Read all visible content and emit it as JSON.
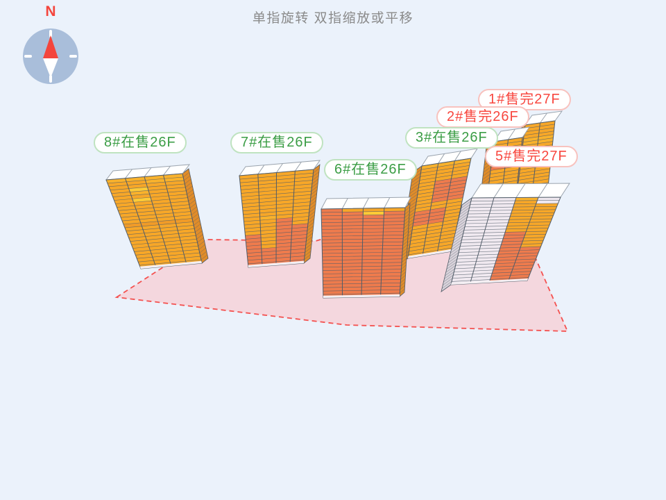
{
  "title": {
    "gesture_hint": "单指旋转 双指缩放或平移"
  },
  "compass": {
    "north_label": "N"
  },
  "buildings": [
    {
      "id": "b1",
      "label": "1#售完27F",
      "number": "1#",
      "status": "售完",
      "floors": "27F",
      "status_type": "sold_out"
    },
    {
      "id": "b2",
      "label": "2#售完26F",
      "number": "2#",
      "status": "售完",
      "floors": "26F",
      "status_type": "sold_out"
    },
    {
      "id": "b3",
      "label": "3#在售26F",
      "number": "3#",
      "status": "在售",
      "floors": "26F",
      "status_type": "on_sale"
    },
    {
      "id": "b5",
      "label": "5#售完27F",
      "number": "5#",
      "status": "售完",
      "floors": "27F",
      "status_type": "sold_out"
    },
    {
      "id": "b6",
      "label": "6#在售26F",
      "number": "6#",
      "status": "在售",
      "floors": "26F",
      "status_type": "on_sale"
    },
    {
      "id": "b7",
      "label": "7#在售26F",
      "number": "7#",
      "status": "在售",
      "floors": "26F",
      "status_type": "on_sale"
    },
    {
      "id": "b8",
      "label": "8#在售26F",
      "number": "8#",
      "status": "在售",
      "floors": "26F",
      "status_type": "on_sale"
    }
  ],
  "colors": {
    "background": "#EBF2FB",
    "title_text": "#8A8A8A",
    "north_label": "#F4453C",
    "compass_circle": "#A9BEDA",
    "compass_needle_north": "#F4453C",
    "compass_needle_south": "#FFFFFF",
    "compass_tick": "#FFFFFF",
    "ground_fill": "#F4D7DE",
    "ground_border": "#F4514F",
    "pill_bg": "#FFFFFF",
    "on_sale_text": "#3B9D45",
    "on_sale_border": "#BFE3C0",
    "sold_out_text": "#F8473F",
    "sold_out_border": "#F8C2BE",
    "building_amber": "#F7A728",
    "building_amber_light": "#F9B22C",
    "building_amber_deep": "#F09B28",
    "building_yellow": "#FFCB37",
    "building_coral": "#EE7B4D",
    "building_sold_floor": "#F0E9F0",
    "building_side_amber": "#E08C29",
    "building_side_sold": "#D9D3DB",
    "building_roof": "#FFFFFF",
    "roof_edge": "#9AA3AD",
    "grid_line": "#515C68",
    "base_strip": "#F4EFF3"
  }
}
